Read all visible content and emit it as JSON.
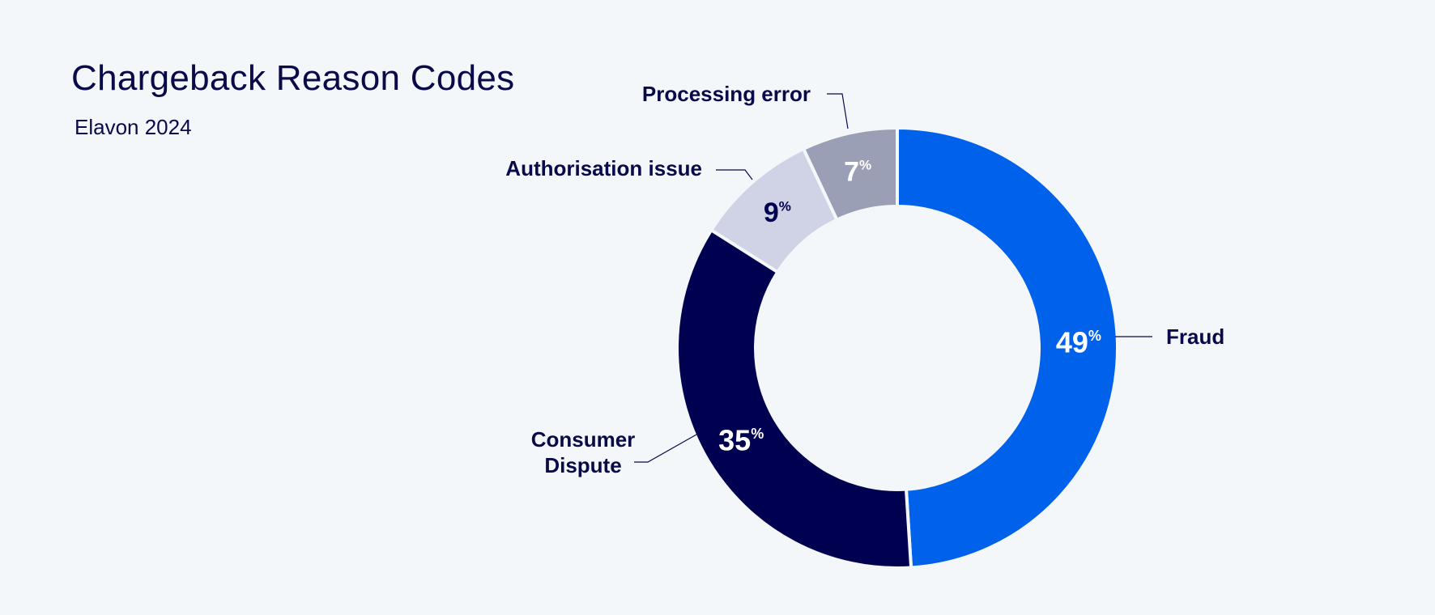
{
  "chart_data": {
    "type": "pie",
    "title": "Chargeback Reason Codes",
    "subtitle": "Elavon 2024",
    "value_suffix": "%",
    "slices": [
      {
        "label": "Fraud",
        "value": 49,
        "color": "#0061eb",
        "value_color": "#ffffff"
      },
      {
        "label": "Consumer Dispute",
        "value": 35,
        "color": "#000050",
        "value_color": "#ffffff"
      },
      {
        "label": "Authorisation issue",
        "value": 9,
        "color": "#d0d3e6",
        "value_color": "#000050"
      },
      {
        "label": "Processing error",
        "value": 7,
        "color": "#9b9fb5",
        "value_color": "#ffffff"
      }
    ]
  }
}
